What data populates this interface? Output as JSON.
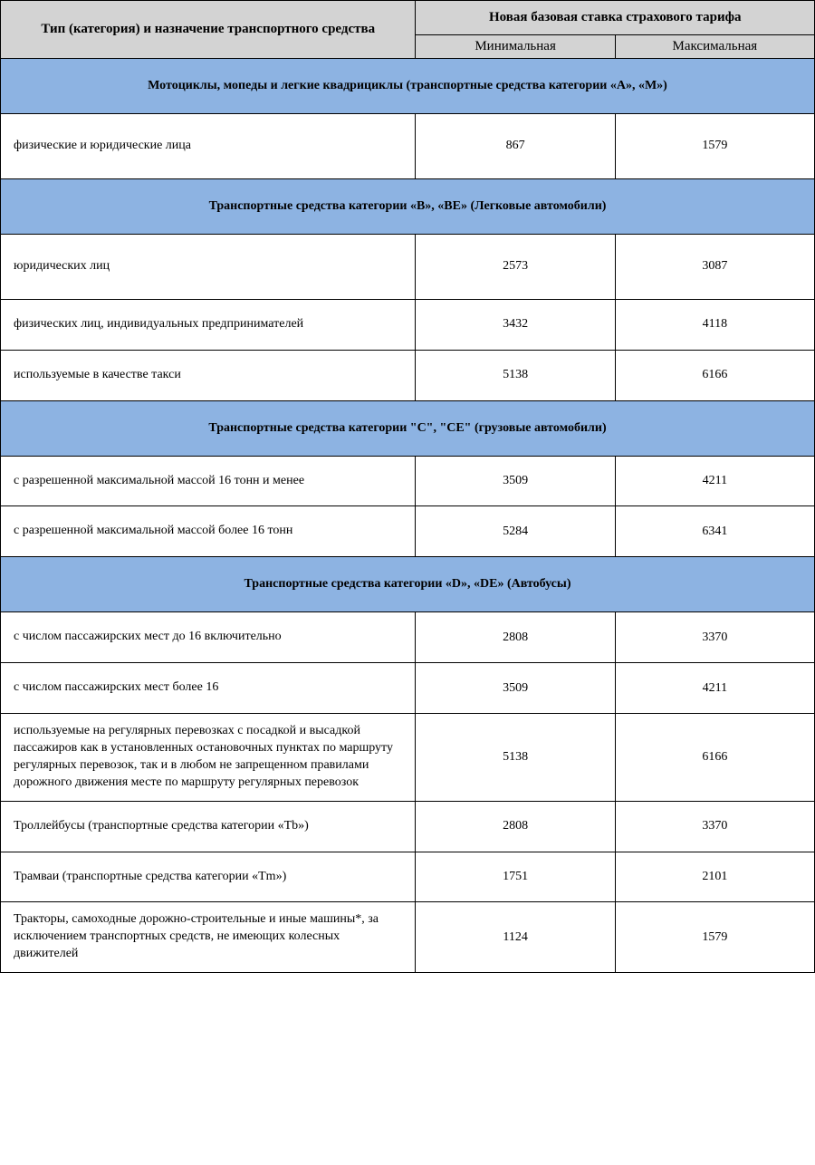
{
  "colors": {
    "header_bg": "#d3d3d3",
    "section_bg": "#8db3e2",
    "border": "#000000",
    "background": "#ffffff",
    "text": "#000000"
  },
  "font": {
    "family": "Times New Roman",
    "header_size_pt": 11,
    "body_size_pt": 10.5
  },
  "columns": {
    "col1_width_pct": 51,
    "col2_width_pct": 24.5,
    "col3_width_pct": 24.5
  },
  "header": {
    "type_col": "Тип (категория) и назначение транспортного средства",
    "rate_col": "Новая базовая ставка страхового тарифа",
    "min": "Минимальная",
    "max": "Максимальная"
  },
  "sections": [
    {
      "title": "Мотоциклы, мопеды и легкие квадрициклы (транспортные средства категории «А», «М»)",
      "rows": [
        {
          "label": "физические и юридические лица",
          "min": "867",
          "max": "1579",
          "tall": true
        }
      ]
    },
    {
      "title": "Транспортные средства категории «В», «ВЕ» (Легковые автомобили)",
      "rows": [
        {
          "label": "юридических лиц",
          "min": "2573",
          "max": "3087",
          "tall": true
        },
        {
          "label": "физических лиц, индивидуальных предпринимателей",
          "min": "3432",
          "max": "4118"
        },
        {
          "label": "используемые в качестве такси",
          "min": "5138",
          "max": "6166"
        }
      ]
    },
    {
      "title": "Транспортные средства категории \"С\", \"СЕ\" (грузовые автомобили)",
      "rows": [
        {
          "label": "с разрешенной максимальной массой 16 тонн и менее",
          "min": "3509",
          "max": "4211"
        },
        {
          "label": "с разрешенной максимальной массой более 16 тонн",
          "min": "5284",
          "max": "6341"
        }
      ]
    },
    {
      "title": "Транспортные средства категории «D», «DE» (Автобусы)",
      "rows": [
        {
          "label": "с числом пассажирских мест до 16 включительно",
          "min": "2808",
          "max": "3370"
        },
        {
          "label": "с числом пассажирских мест более 16",
          "min": "3509",
          "max": "4211"
        },
        {
          "label": "используемые на регулярных перевозках с посадкой и высадкой пассажиров как в установленных остановочных пунктах по маршруту регулярных перевозок, так и в любом не запрещенном правилами дорожного движения месте по маршруту регулярных перевозок",
          "min": "5138",
          "max": "6166",
          "multi": true
        },
        {
          "label": "Троллейбусы (транспортные средства категории «Tb»)",
          "min": "2808",
          "max": "3370"
        },
        {
          "label": "Трамваи (транспортные средства категории «Tm»)",
          "min": "1751",
          "max": "2101"
        },
        {
          "label": "Тракторы, самоходные дорожно-строительные и иные машины*, за исключением транспортных средств, не имеющих колесных движителей",
          "min": "1124",
          "max": "1579",
          "multi": true
        }
      ]
    }
  ]
}
